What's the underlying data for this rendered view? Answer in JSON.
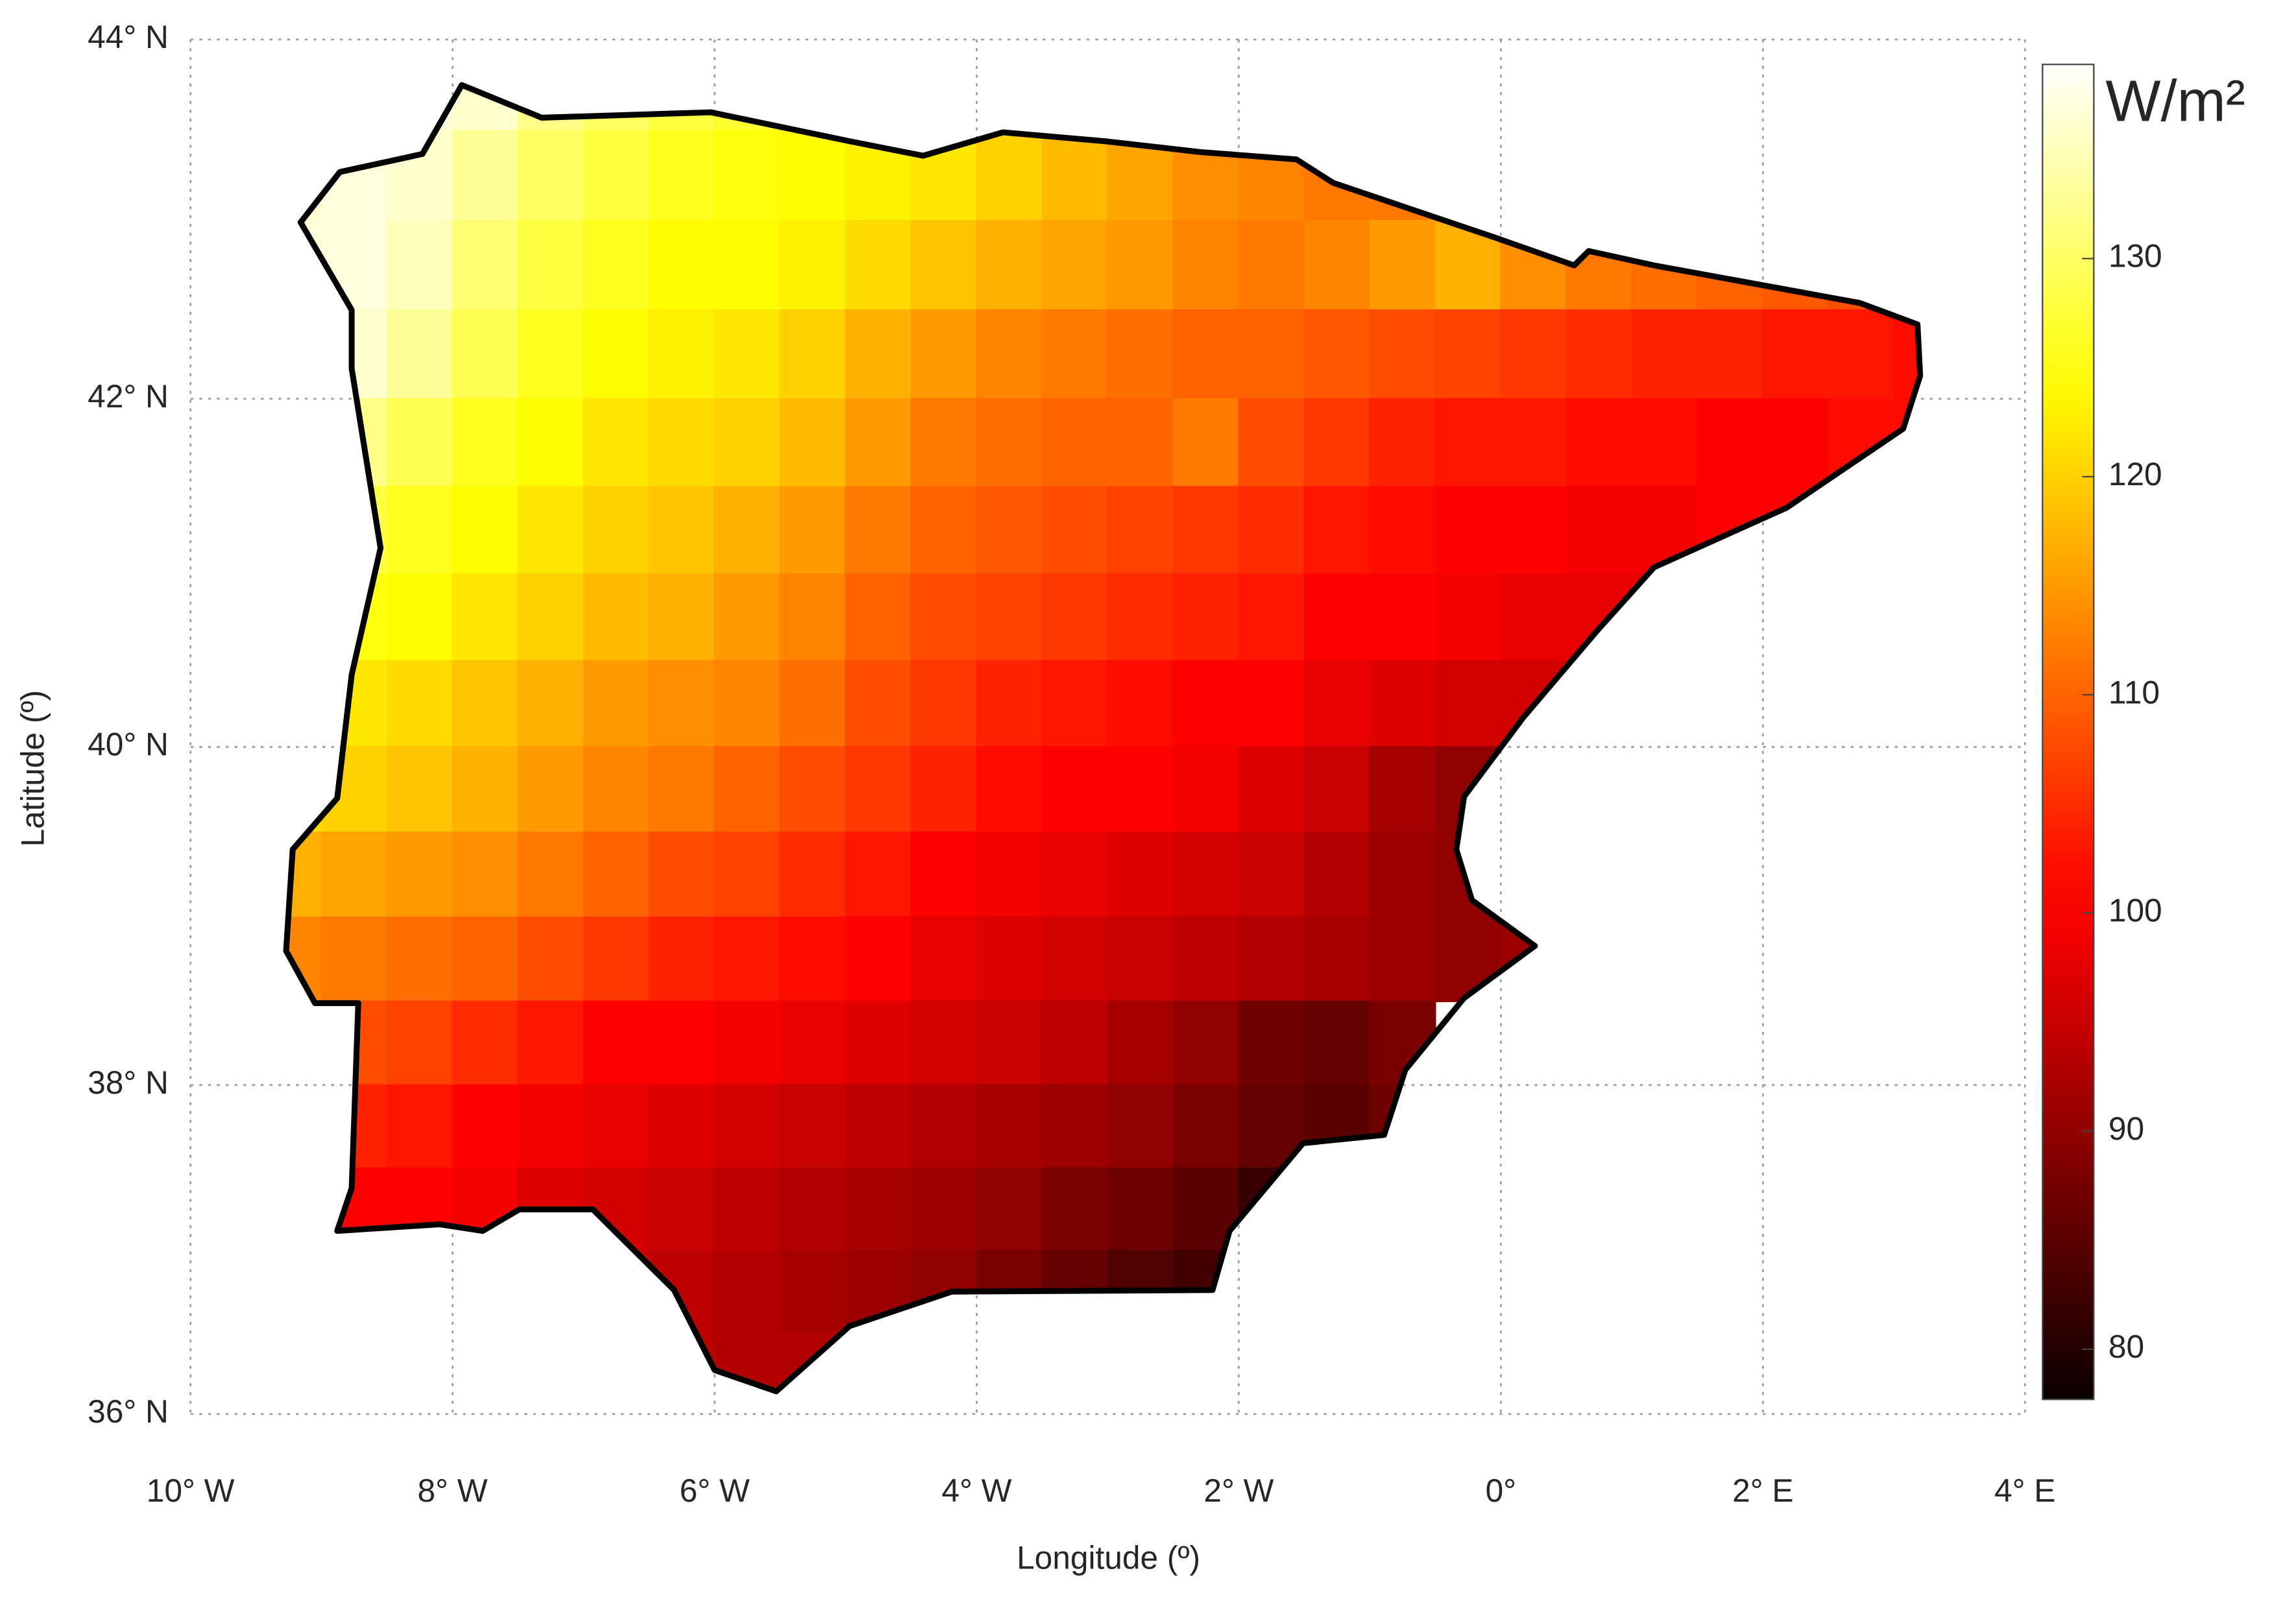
{
  "chart_data": {
    "type": "heatmap",
    "projection": "mercator",
    "colormap": "hot",
    "grid": true,
    "xlabel": "Longitude (º)",
    "ylabel": "Latitude (º)",
    "colorbar_label": "W/m²",
    "xlim": [
      -10,
      4
    ],
    "ylim": [
      36,
      44
    ],
    "clim": [
      77.7,
      138.9
    ],
    "xticks": [
      {
        "value": -10,
        "label": "10° W"
      },
      {
        "value": -8,
        "label": "8° W"
      },
      {
        "value": -6,
        "label": "6° W"
      },
      {
        "value": -4,
        "label": "4° W"
      },
      {
        "value": -2,
        "label": "2° W"
      },
      {
        "value": 0,
        "label": "0°"
      },
      {
        "value": 2,
        "label": "2° E"
      },
      {
        "value": 4,
        "label": "4° E"
      }
    ],
    "yticks": [
      {
        "value": 36,
        "label": "36° N"
      },
      {
        "value": 38,
        "label": "38° N"
      },
      {
        "value": 40,
        "label": "40° N"
      },
      {
        "value": 42,
        "label": "42° N"
      },
      {
        "value": 44,
        "label": "44° N"
      }
    ],
    "cticks": [
      80,
      90,
      100,
      110,
      120,
      130
    ],
    "x": [
      -9.25,
      -8.75,
      -8.25,
      -7.75,
      -7.25,
      -6.75,
      -6.25,
      -5.75,
      -5.25,
      -4.75,
      -4.25,
      -3.75,
      -3.25,
      -2.75,
      -2.25,
      -1.75,
      -1.25,
      -0.75,
      -0.25,
      0.25,
      0.75,
      1.25,
      1.75,
      2.25,
      2.75,
      3.25
    ],
    "y": [
      43.75,
      43.25,
      42.75,
      42.25,
      41.75,
      41.25,
      40.75,
      40.25,
      39.75,
      39.25,
      38.75,
      38.25,
      37.75,
      37.25,
      36.75,
      36.25
    ],
    "values": [
      [
        null,
        137,
        137,
        136,
        132,
        130,
        128,
        127,
        126,
        125,
        124,
        124,
        123,
        null,
        null,
        null,
        null,
        null,
        null,
        null,
        null,
        null,
        null,
        null,
        null,
        null
      ],
      [
        136,
        137,
        136,
        133,
        130,
        128,
        126,
        125,
        124,
        123,
        122,
        120,
        118,
        116,
        114,
        113,
        112,
        112,
        null,
        null,
        null,
        null,
        null,
        null,
        null,
        null
      ],
      [
        137,
        137,
        135,
        131,
        128,
        126,
        124,
        124,
        123,
        121,
        119,
        117,
        116,
        115,
        113,
        112,
        113,
        115,
        117,
        114,
        112,
        111,
        110,
        109,
        108,
        null
      ],
      [
        137,
        136,
        133,
        129,
        126,
        124,
        123,
        122,
        120,
        117,
        115,
        113,
        112,
        111,
        110,
        110,
        109,
        108,
        107,
        106,
        105,
        104,
        104,
        103,
        103,
        102
      ],
      [
        134,
        132,
        129,
        126,
        124,
        122,
        121,
        120,
        118,
        115,
        112,
        111,
        110,
        110,
        112,
        108,
        106,
        104,
        103,
        103,
        102,
        102,
        101,
        101,
        102,
        102
      ],
      [
        129,
        128,
        126,
        124,
        122,
        120,
        119,
        117,
        115,
        112,
        110,
        109,
        108,
        107,
        106,
        105,
        103,
        102,
        101,
        100,
        99,
        99,
        100,
        100,
        null,
        null
      ],
      [
        126,
        125,
        124,
        122,
        120,
        118,
        117,
        115,
        113,
        110,
        108,
        107,
        106,
        105,
        104,
        103,
        101,
        100,
        99,
        98,
        98,
        98,
        null,
        null,
        null,
        null
      ],
      [
        123,
        122,
        121,
        119,
        117,
        115,
        114,
        113,
        111,
        108,
        106,
        104,
        103,
        102,
        101,
        100,
        98,
        97,
        96,
        96,
        null,
        null,
        null,
        null,
        null,
        null
      ],
      [
        121,
        120,
        119,
        117,
        115,
        113,
        112,
        110,
        108,
        106,
        104,
        102,
        101,
        100,
        99,
        97,
        95,
        92,
        90,
        null,
        null,
        null,
        null,
        null,
        null,
        null
      ],
      [
        117,
        116,
        115,
        114,
        112,
        110,
        108,
        107,
        105,
        103,
        101,
        99,
        98,
        97,
        96,
        95,
        93,
        91,
        90,
        null,
        null,
        null,
        null,
        null,
        null,
        null
      ],
      [
        113,
        112,
        111,
        110,
        108,
        106,
        104,
        103,
        102,
        100,
        98,
        97,
        96,
        95,
        94,
        93,
        92,
        91,
        90,
        91,
        null,
        null,
        null,
        null,
        null,
        null
      ],
      [
        null,
        108,
        107,
        105,
        103,
        101,
        100,
        99,
        98,
        97,
        96,
        95,
        94,
        92,
        90,
        87,
        86,
        88,
        null,
        null,
        null,
        null,
        null,
        null,
        null,
        null
      ],
      [
        null,
        104,
        103,
        101,
        99,
        98,
        97,
        96,
        95,
        94,
        93,
        92,
        91,
        90,
        88,
        86,
        85,
        87,
        null,
        null,
        null,
        null,
        null,
        null,
        null,
        null
      ],
      [
        102,
        101,
        100,
        99,
        97,
        96,
        95,
        94,
        93,
        92,
        91,
        90,
        88,
        87,
        85,
        82,
        84,
        null,
        null,
        null,
        null,
        null,
        null,
        null,
        null,
        null
      ],
      [
        null,
        null,
        null,
        null,
        null,
        95,
        94,
        93,
        92,
        91,
        90,
        88,
        86,
        84,
        83,
        82,
        null,
        null,
        null,
        null,
        null,
        null,
        null,
        null,
        null,
        null
      ],
      [
        null,
        null,
        null,
        null,
        null,
        null,
        94,
        93,
        93,
        null,
        null,
        null,
        null,
        null,
        null,
        null,
        null,
        null,
        null,
        null,
        null,
        null,
        null,
        null,
        null,
        null
      ]
    ]
  }
}
